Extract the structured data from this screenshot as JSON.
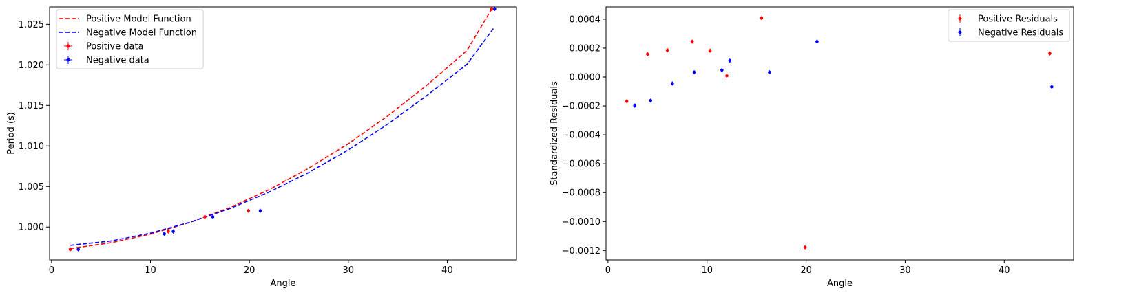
{
  "chart_data": [
    {
      "type": "line",
      "xlabel": "Angle",
      "ylabel": "Period (s)",
      "xlim": [
        -0.2,
        47.0
      ],
      "ylim": [
        0.99595,
        1.02715
      ],
      "xticks": [
        0,
        10,
        20,
        30,
        40
      ],
      "yticks": [
        1.0,
        1.005,
        1.01,
        1.015,
        1.02,
        1.025
      ],
      "ytick_labels": [
        "1.000",
        "1.005",
        "1.010",
        "1.015",
        "1.020",
        "1.025"
      ],
      "legend_position": "upper-left",
      "series": [
        {
          "name": "Positive Model Function",
          "kind": "line",
          "style": "dashed",
          "color": "#ff0000",
          "x": [
            1.9,
            6.0,
            10.0,
            14.0,
            18.0,
            22.0,
            26.0,
            30.0,
            34.0,
            38.0,
            42.0,
            44.5
          ],
          "y": [
            0.99735,
            0.99806,
            0.99912,
            1.00057,
            1.00239,
            1.00461,
            1.00725,
            1.01027,
            1.01371,
            1.01755,
            1.02178,
            1.0269
          ]
        },
        {
          "name": "Negative Model Function",
          "kind": "line",
          "style": "dashed",
          "color": "#0000ff",
          "x": [
            1.9,
            6.0,
            10.0,
            14.0,
            18.0,
            22.0,
            26.0,
            30.0,
            34.0,
            38.0,
            42.0,
            44.7
          ],
          "y": [
            0.99775,
            0.99827,
            0.99924,
            1.00059,
            1.00227,
            1.00431,
            1.00672,
            1.00951,
            1.0127,
            1.01627,
            1.02008,
            1.02455
          ]
        },
        {
          "name": "Positive data",
          "kind": "scatter",
          "color": "#ff0000",
          "x": [
            1.9,
            11.8,
            15.5,
            19.9,
            44.5
          ],
          "y": [
            0.99725,
            0.99945,
            1.00125,
            1.002,
            1.0269
          ]
        },
        {
          "name": "Negative data",
          "kind": "scatter",
          "color": "#0000ff",
          "x": [
            2.7,
            11.4,
            12.3,
            16.3,
            21.1,
            44.8
          ],
          "y": [
            0.99725,
            0.99915,
            0.99945,
            1.00125,
            1.002,
            1.0269
          ]
        }
      ]
    },
    {
      "type": "scatter",
      "xlabel": "Angle",
      "ylabel": "Standardized Residuals",
      "xlim": [
        -0.2,
        47.0
      ],
      "ylim": [
        -0.001265,
        0.000485
      ],
      "xticks": [
        0,
        10,
        20,
        30,
        40
      ],
      "yticks": [
        -0.0012,
        -0.001,
        -0.0008,
        -0.0006,
        -0.0004,
        -0.0002,
        0.0,
        0.0002,
        0.0004
      ],
      "ytick_labels": [
        "−0.0012",
        "−0.0010",
        "−0.0008",
        "−0.0006",
        "−0.0004",
        "−0.0002",
        "0.0000",
        "0.0002",
        "0.0004"
      ],
      "legend_position": "upper-right",
      "series": [
        {
          "name": "Positive Residuals",
          "kind": "scatter",
          "color": "#ff0000",
          "x": [
            1.9,
            4.0,
            6.0,
            8.5,
            10.3,
            12.0,
            15.5,
            19.9,
            44.6
          ],
          "y": [
            -0.000168,
            0.000158,
            0.000185,
            0.000245,
            0.000182,
            8e-06,
            0.000408,
            -0.001178,
            0.000163
          ]
        },
        {
          "name": "Negative Residuals",
          "kind": "scatter",
          "color": "#0000ff",
          "x": [
            2.7,
            4.3,
            6.5,
            8.7,
            11.5,
            12.3,
            16.3,
            21.1,
            44.8
          ],
          "y": [
            -0.000198,
            -0.000163,
            -4.5e-05,
            3.3e-05,
            4.8e-05,
            0.000113,
            3.3e-05,
            0.000245,
            -6.8e-05
          ]
        }
      ]
    }
  ]
}
